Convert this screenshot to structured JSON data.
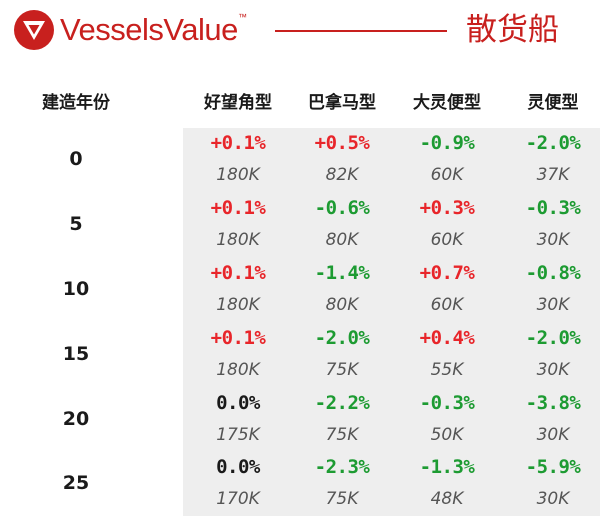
{
  "header": {
    "brand": "VesselsValue",
    "trademark": "™",
    "vessel_type": "散货船"
  },
  "colors": {
    "brand_red": "#c8201e",
    "positive": "#e8252a",
    "negative": "#1d9b32",
    "shade": "#eeeeee"
  },
  "table": {
    "age_header": "建造年份",
    "columns": [
      "好望角型",
      "巴拿马型",
      "大灵便型",
      "灵便型"
    ],
    "rows": [
      {
        "age": "0",
        "cells": [
          {
            "change": "+0.1%",
            "value": "180K"
          },
          {
            "change": "+0.5%",
            "value": "82K"
          },
          {
            "change": "-0.9%",
            "value": "60K"
          },
          {
            "change": "-2.0%",
            "value": "37K"
          }
        ]
      },
      {
        "age": "5",
        "cells": [
          {
            "change": "+0.1%",
            "value": "180K"
          },
          {
            "change": "-0.6%",
            "value": "80K"
          },
          {
            "change": "+0.3%",
            "value": "60K"
          },
          {
            "change": "-0.3%",
            "value": "30K"
          }
        ]
      },
      {
        "age": "10",
        "cells": [
          {
            "change": "+0.1%",
            "value": "180K"
          },
          {
            "change": "-1.4%",
            "value": "80K"
          },
          {
            "change": "+0.7%",
            "value": "60K"
          },
          {
            "change": "-0.8%",
            "value": "30K"
          }
        ]
      },
      {
        "age": "15",
        "cells": [
          {
            "change": "+0.1%",
            "value": "180K"
          },
          {
            "change": "-2.0%",
            "value": "75K"
          },
          {
            "change": "+0.4%",
            "value": "55K"
          },
          {
            "change": "-2.0%",
            "value": "30K"
          }
        ]
      },
      {
        "age": "20",
        "cells": [
          {
            "change": "0.0%",
            "value": "175K"
          },
          {
            "change": "-2.2%",
            "value": "75K"
          },
          {
            "change": "-0.3%",
            "value": "50K"
          },
          {
            "change": "-3.8%",
            "value": "30K"
          }
        ]
      },
      {
        "age": "25",
        "cells": [
          {
            "change": "0.0%",
            "value": "170K"
          },
          {
            "change": "-2.3%",
            "value": "75K"
          },
          {
            "change": "-1.3%",
            "value": "48K"
          },
          {
            "change": "-5.9%",
            "value": "30K"
          }
        ]
      }
    ]
  }
}
